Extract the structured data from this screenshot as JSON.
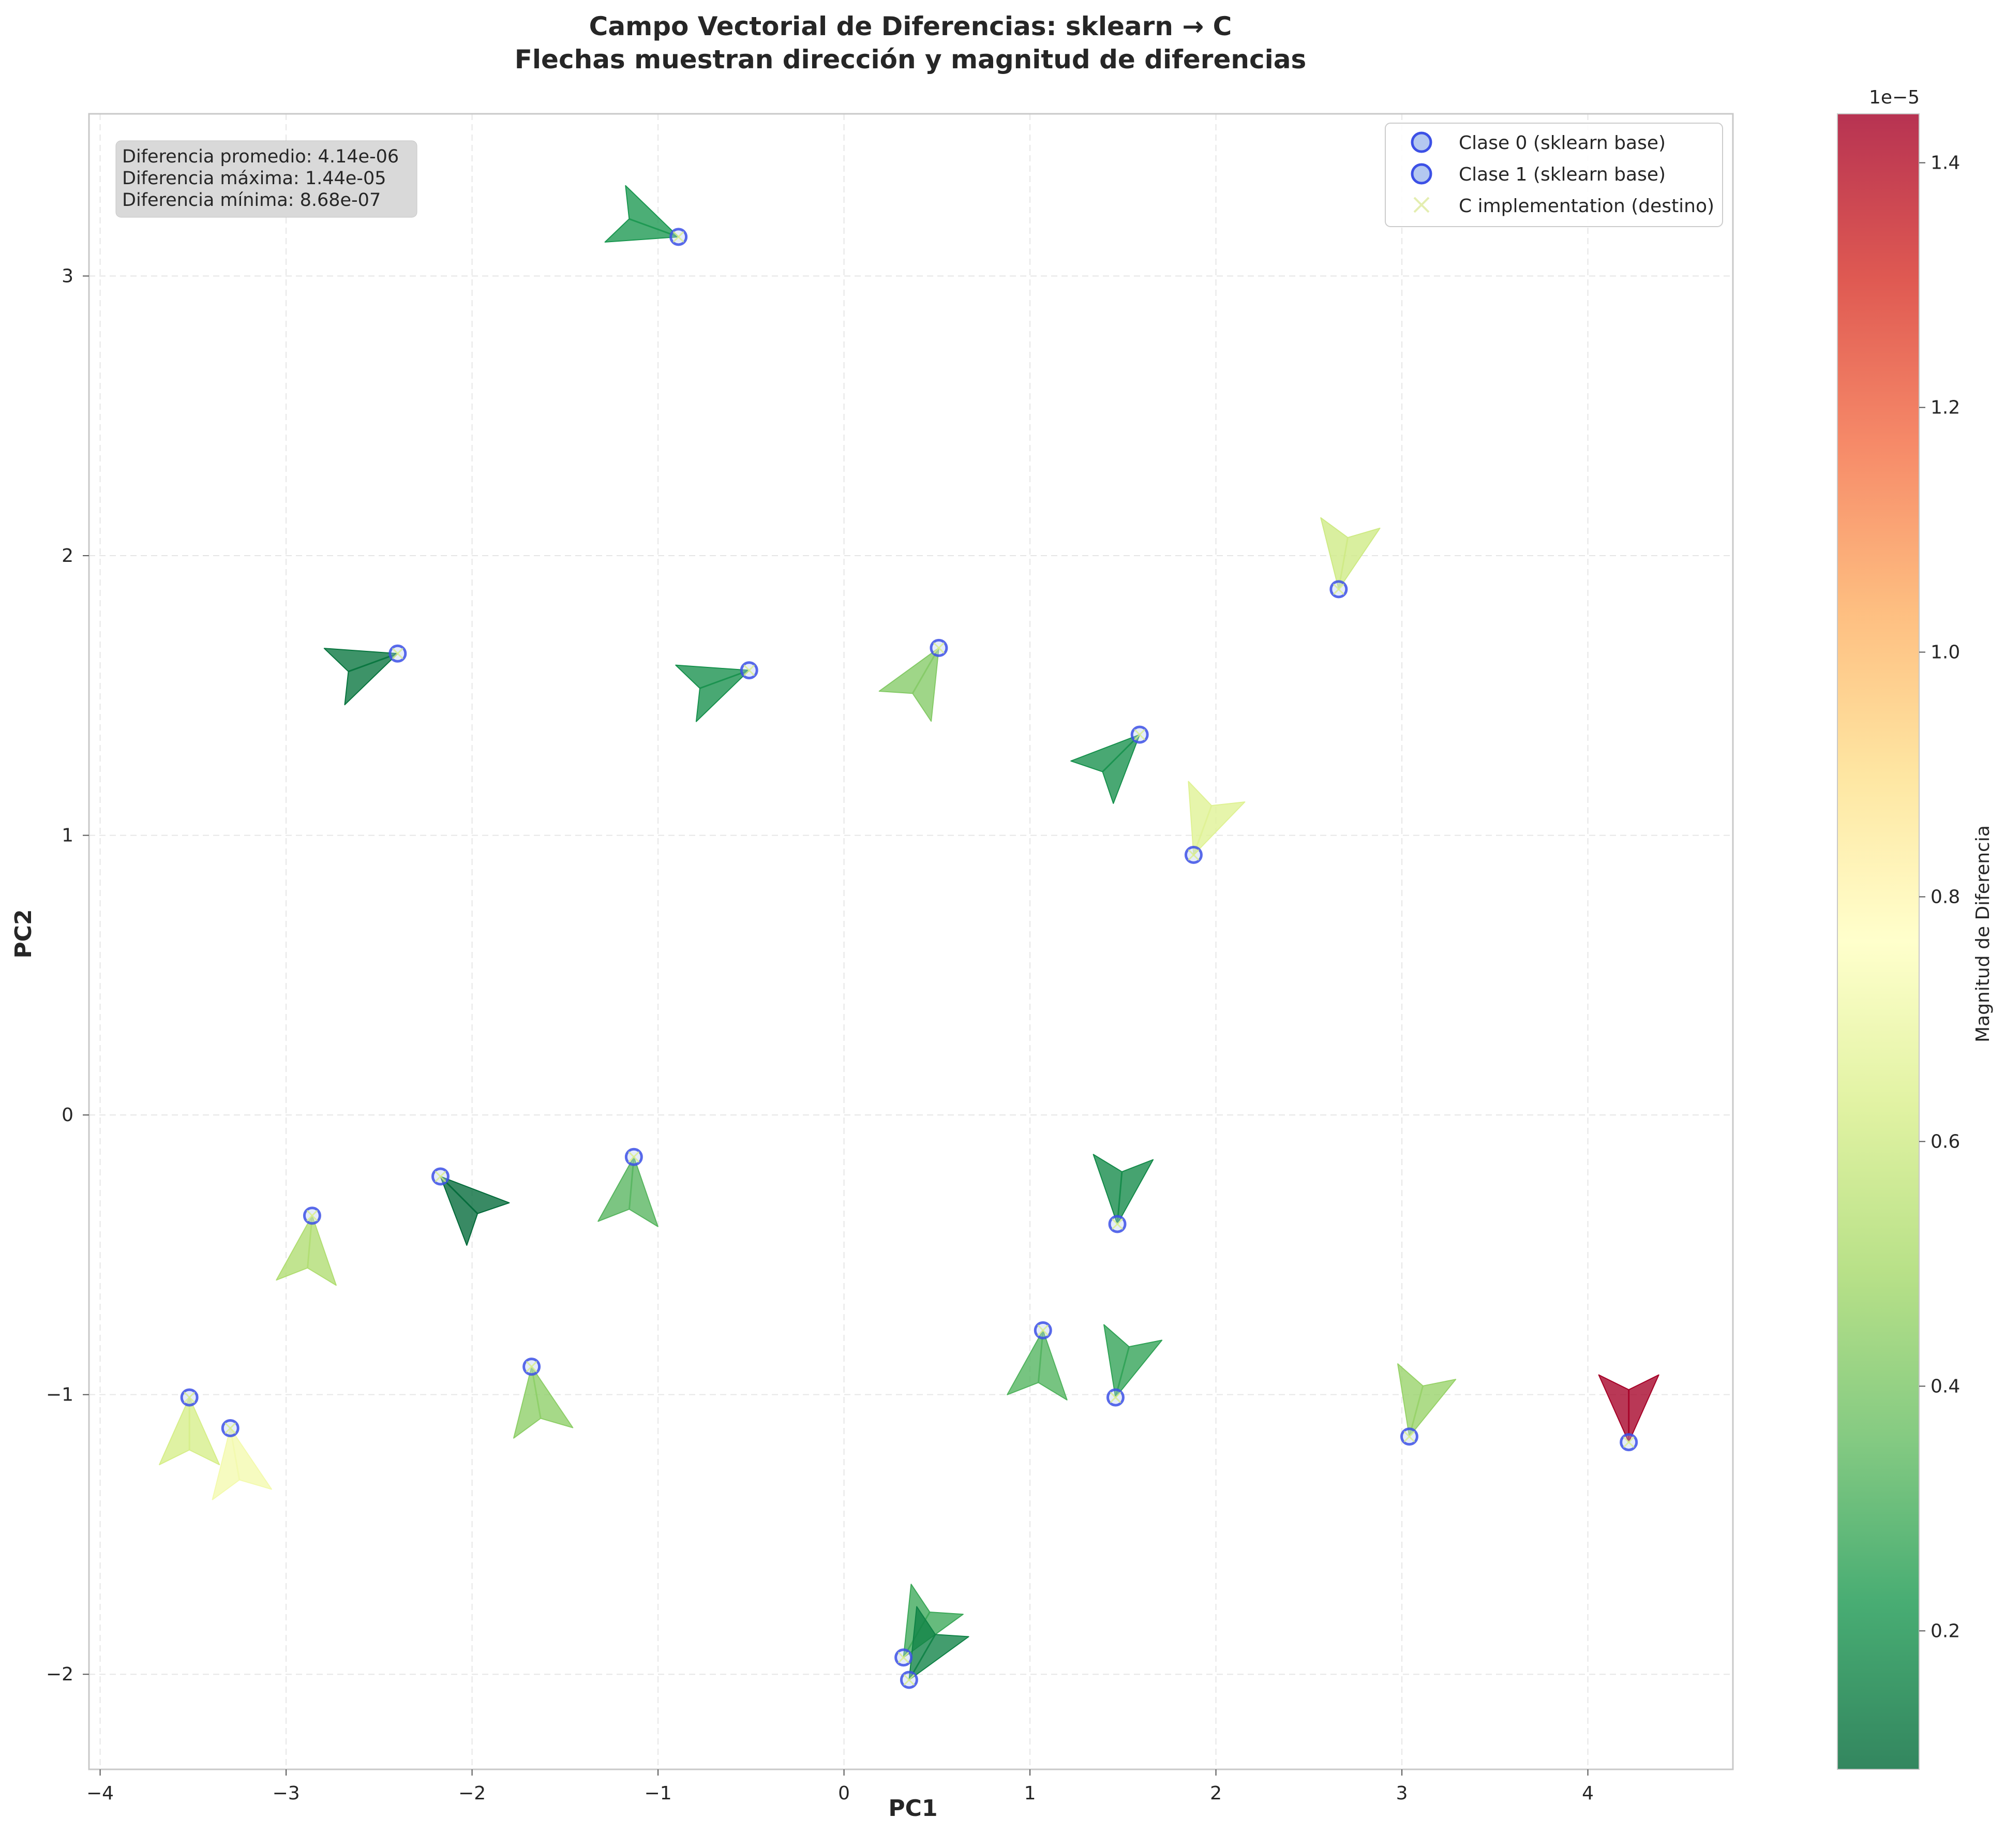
{
  "chart_data": {
    "type": "quiver",
    "title_line1": "Campo Vectorial de Diferencias: sklearn → C",
    "title_line2": "Flechas muestran dirección y magnitud de diferencias",
    "xlabel": "PC1",
    "ylabel": "PC2",
    "xlim": [
      -4.06,
      4.78
    ],
    "ylim": [
      -2.34,
      3.58
    ],
    "xticks": [
      -4,
      -3,
      -2,
      -1,
      0,
      1,
      2,
      3,
      4
    ],
    "yticks": [
      -2,
      -1,
      0,
      1,
      2,
      3
    ],
    "grid": true,
    "stats": [
      "Diferencia promedio: 4.14e-06",
      "Diferencia máxima: 1.44e-05",
      "Diferencia mínima: 8.68e-07"
    ],
    "legend": {
      "placement": "top-right",
      "entries": [
        {
          "label": "Clase 0 (sklearn base)",
          "marker": "circle"
        },
        {
          "label": "Clase 1 (sklearn base)",
          "marker": "circle"
        },
        {
          "label": "C implementation (destino)",
          "marker": "x"
        }
      ]
    },
    "colorbar": {
      "label": "Magnitud de Diferencia",
      "offset_label": "1e−5",
      "min": 0.0868,
      "max": 1.44,
      "ticks": [
        0.2,
        0.4,
        0.6,
        0.8,
        1.0,
        1.2,
        1.4
      ],
      "tick_labels": [
        "0.2",
        "0.4",
        "0.6",
        "0.8",
        "1.0",
        "1.2",
        "1.4"
      ],
      "colormap": "RdYlGn_r",
      "stops": [
        "#006837",
        "#1a9850",
        "#66bd63",
        "#a6d96a",
        "#d9ef8b",
        "#ffffbf",
        "#fee08b",
        "#fdae61",
        "#f46d43",
        "#d73027",
        "#a50026"
      ]
    },
    "points": [
      {
        "x": -0.89,
        "y": 3.14,
        "mag": 0.22,
        "angle": 160
      },
      {
        "x": -2.4,
        "y": 1.65,
        "mag": 0.12,
        "angle": 200
      },
      {
        "x": -0.51,
        "y": 1.59,
        "mag": 0.2,
        "angle": 200
      },
      {
        "x": 0.51,
        "y": 1.67,
        "mag": 0.42,
        "angle": 240
      },
      {
        "x": 1.59,
        "y": 1.36,
        "mag": 0.2,
        "angle": 225
      },
      {
        "x": 1.88,
        "y": 0.93,
        "mag": 0.65,
        "angle": 70
      },
      {
        "x": 2.66,
        "y": 1.88,
        "mag": 0.6,
        "angle": 80
      },
      {
        "x": -2.17,
        "y": -0.22,
        "mag": 0.09,
        "angle": -45
      },
      {
        "x": -1.13,
        "y": -0.15,
        "mag": 0.33,
        "angle": 265
      },
      {
        "x": -2.86,
        "y": -0.36,
        "mag": 0.52,
        "angle": 265
      },
      {
        "x": 1.47,
        "y": -0.39,
        "mag": 0.18,
        "angle": 85
      },
      {
        "x": -1.68,
        "y": -0.9,
        "mag": 0.44,
        "angle": 280
      },
      {
        "x": 1.07,
        "y": -0.77,
        "mag": 0.32,
        "angle": 265
      },
      {
        "x": 1.46,
        "y": -1.01,
        "mag": 0.26,
        "angle": 75
      },
      {
        "x": 3.04,
        "y": -1.15,
        "mag": 0.46,
        "angle": 75
      },
      {
        "x": 4.22,
        "y": -1.17,
        "mag": 1.44,
        "angle": 90
      },
      {
        "x": -3.52,
        "y": -1.01,
        "mag": 0.62,
        "angle": 270
      },
      {
        "x": -3.3,
        "y": -1.12,
        "mag": 0.72,
        "angle": 280
      },
      {
        "x": 0.32,
        "y": -1.94,
        "mag": 0.28,
        "angle": 60
      },
      {
        "x": 0.35,
        "y": -2.02,
        "mag": 0.16,
        "angle": 60
      }
    ]
  }
}
